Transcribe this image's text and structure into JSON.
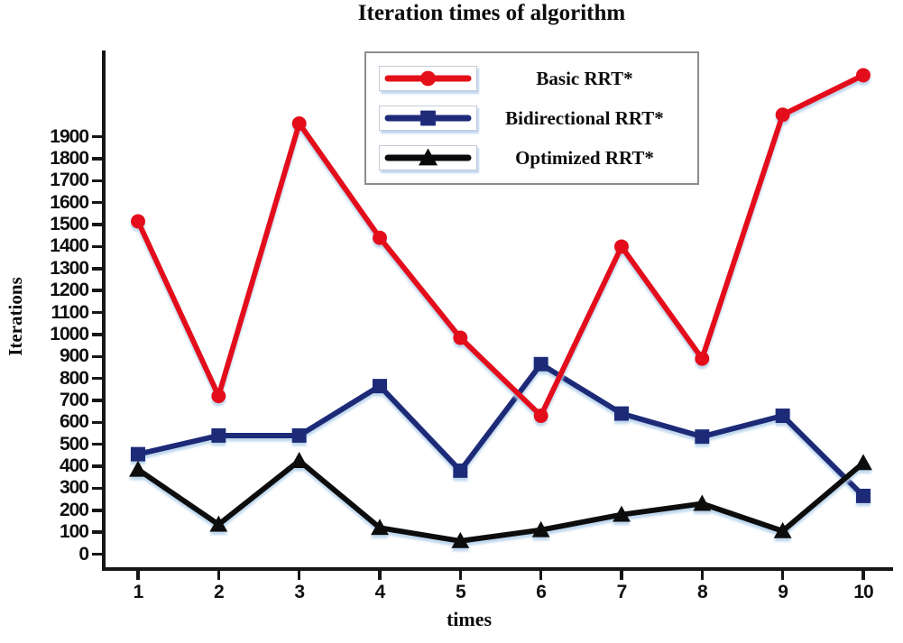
{
  "title": "Iteration times of algorithm",
  "axes": {
    "x_label": "times",
    "y_label": "Iterations"
  },
  "colors": {
    "red": "#e3101a",
    "navy": "#1f2a78",
    "black": "#0a0a0a",
    "axis": "#161616",
    "marker_shadow": "#b7d3ec"
  },
  "chart_data": {
    "type": "line",
    "title": "Iteration times of algorithm",
    "xlabel": "times",
    "ylabel": "Iterations",
    "x": [
      1,
      2,
      3,
      4,
      5,
      6,
      7,
      8,
      9,
      10
    ],
    "x_tick_labels": [
      "1",
      "2",
      "3",
      "4",
      "5",
      "6",
      "7",
      "8",
      "9",
      "10"
    ],
    "y_ticks": [
      0,
      100,
      200,
      300,
      400,
      500,
      600,
      700,
      800,
      900,
      1000,
      1100,
      1200,
      1300,
      1400,
      1500,
      1600,
      1700,
      1800,
      1900
    ],
    "ylim": [
      0,
      2290
    ],
    "grid": false,
    "legend_position": "top-center-inside",
    "legend_entries": [
      "Basic RRT*",
      "Bidirectional RRT*",
      "Optimized RRT*"
    ],
    "series": [
      {
        "name": "Basic RRT*",
        "color": "#e3101a",
        "marker": "circle",
        "values": [
          1515,
          720,
          1960,
          1440,
          985,
          630,
          1400,
          890,
          2000,
          2180
        ]
      },
      {
        "name": "Bidirectional RRT*",
        "color": "#1f2a78",
        "marker": "square",
        "values": [
          455,
          540,
          540,
          765,
          380,
          865,
          640,
          535,
          630,
          265
        ]
      },
      {
        "name": "Optimized RRT*",
        "color": "#0a0a0a",
        "marker": "triangle",
        "values": [
          385,
          135,
          425,
          120,
          60,
          110,
          180,
          230,
          105,
          415
        ]
      }
    ]
  }
}
